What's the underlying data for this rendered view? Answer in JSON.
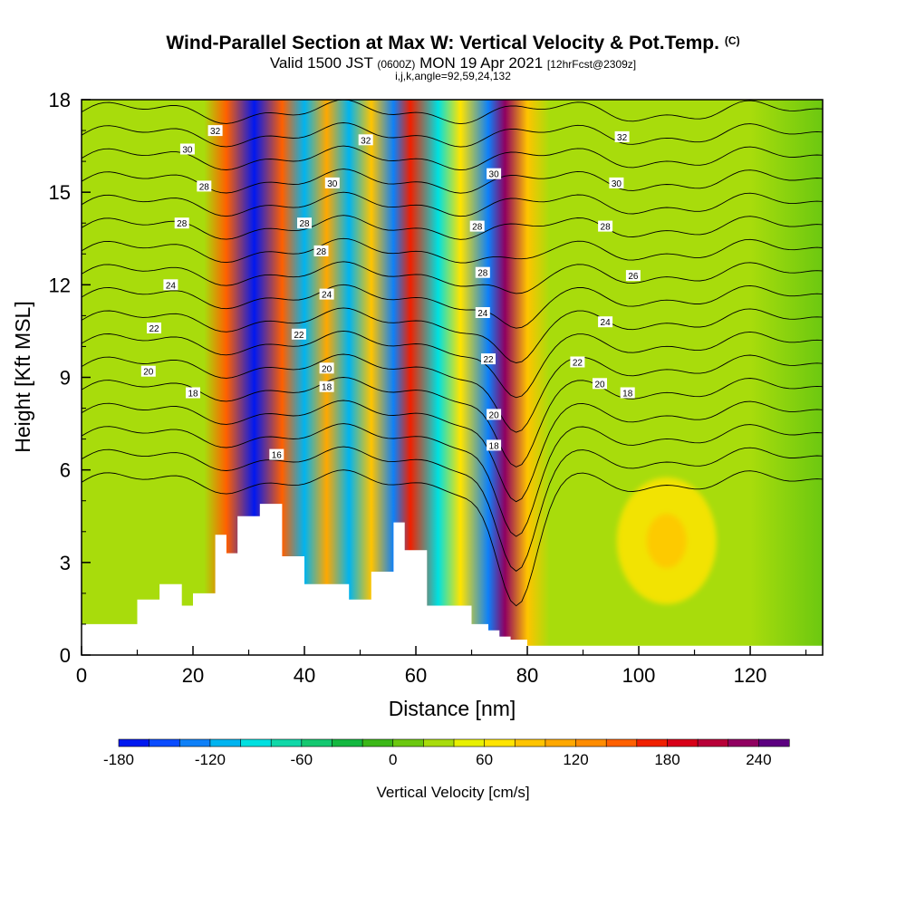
{
  "header": {
    "title": "Wind-Parallel Section at Max W: Vertical Velocity & Pot.Temp.",
    "title_mark": "(C)",
    "sub_valid": "Valid 1500 JST",
    "sub_utc": "(0600Z)",
    "sub_date": "MON 19 Apr 2021",
    "sub_fcst": "[12hrFcst@2309z]",
    "sub_indices": "i,j,k,angle=92,59,24,132"
  },
  "chart_data": {
    "type": "heatmap",
    "xlabel": "Distance [nm]",
    "ylabel": "Height [Kft MSL]",
    "xlim": [
      0,
      133
    ],
    "ylim": [
      0,
      18
    ],
    "x_ticks": [
      "0",
      "20",
      "40",
      "60",
      "80",
      "100",
      "120"
    ],
    "y_ticks": [
      "0",
      "3",
      "6",
      "9",
      "12",
      "15",
      "18"
    ],
    "color_variable": "Vertical Velocity [cm/s]",
    "colorbar": {
      "label": "Vertical Velocity [cm/s]",
      "min": -180,
      "max": 270,
      "step": 20,
      "tick_labels": [
        "-180",
        "-120",
        "-60",
        "0",
        "60",
        "120",
        "180",
        "240"
      ],
      "colors": [
        "#0018f0",
        "#0a4cff",
        "#0e80f8",
        "#00b4f0",
        "#00e0e0",
        "#10d8a8",
        "#14c870",
        "#14b840",
        "#3cb818",
        "#6cc810",
        "#a8dc0c",
        "#e8f000",
        "#ffe400",
        "#ffc400",
        "#ffa800",
        "#ff8c00",
        "#ff6000",
        "#f02000",
        "#d80018",
        "#b80038",
        "#900060",
        "#5c0080"
      ]
    },
    "terrain_profile_kft": {
      "x": [
        0,
        4,
        10,
        14,
        18,
        20,
        24,
        26,
        28,
        32,
        36,
        40,
        44,
        48,
        52,
        56,
        58,
        62,
        66,
        70,
        73,
        75,
        77,
        80,
        133
      ],
      "z": [
        1.0,
        1.0,
        1.8,
        2.3,
        1.6,
        2.0,
        3.9,
        3.3,
        4.5,
        4.9,
        3.2,
        2.3,
        2.3,
        1.8,
        2.7,
        4.3,
        3.4,
        1.6,
        1.6,
        1.0,
        0.8,
        0.6,
        0.5,
        0.3,
        0.3
      ]
    },
    "vertical_velocity_bands": [
      {
        "x": 26,
        "cm_s": 140
      },
      {
        "x": 31,
        "cm_s": -180
      },
      {
        "x": 36,
        "cm_s": 140
      },
      {
        "x": 40,
        "cm_s": -120
      },
      {
        "x": 44,
        "cm_s": 100
      },
      {
        "x": 48,
        "cm_s": -120
      },
      {
        "x": 52,
        "cm_s": 90
      },
      {
        "x": 56,
        "cm_s": -140
      },
      {
        "x": 59,
        "cm_s": 160
      },
      {
        "x": 64,
        "cm_s": -100
      },
      {
        "x": 68,
        "cm_s": 60
      },
      {
        "x": 73,
        "cm_s": -140
      },
      {
        "x": 76,
        "cm_s": 220
      },
      {
        "x": 80,
        "cm_s": 80
      }
    ],
    "upslope_maximum": {
      "x": 105,
      "z": 3.7,
      "cm_s": 60
    },
    "isentropes": {
      "label_values": [
        16,
        18,
        20,
        22,
        24,
        26,
        28,
        30,
        32
      ],
      "labels": [
        {
          "text": "32",
          "x": 24,
          "z": 17.0
        },
        {
          "text": "30",
          "x": 19,
          "z": 16.4
        },
        {
          "text": "28",
          "x": 22,
          "z": 15.2
        },
        {
          "text": "28",
          "x": 18,
          "z": 14.0
        },
        {
          "text": "24",
          "x": 16,
          "z": 12.0
        },
        {
          "text": "22",
          "x": 13,
          "z": 10.6
        },
        {
          "text": "20",
          "x": 12,
          "z": 9.2
        },
        {
          "text": "18",
          "x": 20,
          "z": 8.5
        },
        {
          "text": "16",
          "x": 35,
          "z": 6.5
        },
        {
          "text": "32",
          "x": 51,
          "z": 16.7
        },
        {
          "text": "30",
          "x": 45,
          "z": 15.3
        },
        {
          "text": "28",
          "x": 40,
          "z": 14.0
        },
        {
          "text": "28",
          "x": 43,
          "z": 13.1
        },
        {
          "text": "24",
          "x": 44,
          "z": 11.7
        },
        {
          "text": "22",
          "x": 39,
          "z": 10.4
        },
        {
          "text": "20",
          "x": 44,
          "z": 9.3
        },
        {
          "text": "18",
          "x": 44,
          "z": 8.7
        },
        {
          "text": "30",
          "x": 74,
          "z": 15.6
        },
        {
          "text": "28",
          "x": 71,
          "z": 13.9
        },
        {
          "text": "28",
          "x": 72,
          "z": 12.4
        },
        {
          "text": "24",
          "x": 72,
          "z": 11.1
        },
        {
          "text": "22",
          "x": 73,
          "z": 9.6
        },
        {
          "text": "20",
          "x": 74,
          "z": 7.8
        },
        {
          "text": "18",
          "x": 74,
          "z": 6.8
        },
        {
          "text": "32",
          "x": 97,
          "z": 16.8
        },
        {
          "text": "30",
          "x": 96,
          "z": 15.3
        },
        {
          "text": "28",
          "x": 94,
          "z": 13.9
        },
        {
          "text": "26",
          "x": 99,
          "z": 12.3
        },
        {
          "text": "24",
          "x": 94,
          "z": 10.8
        },
        {
          "text": "22",
          "x": 89,
          "z": 9.5
        },
        {
          "text": "20",
          "x": 93,
          "z": 8.8
        },
        {
          "text": "18",
          "x": 98,
          "z": 8.5
        }
      ]
    }
  }
}
